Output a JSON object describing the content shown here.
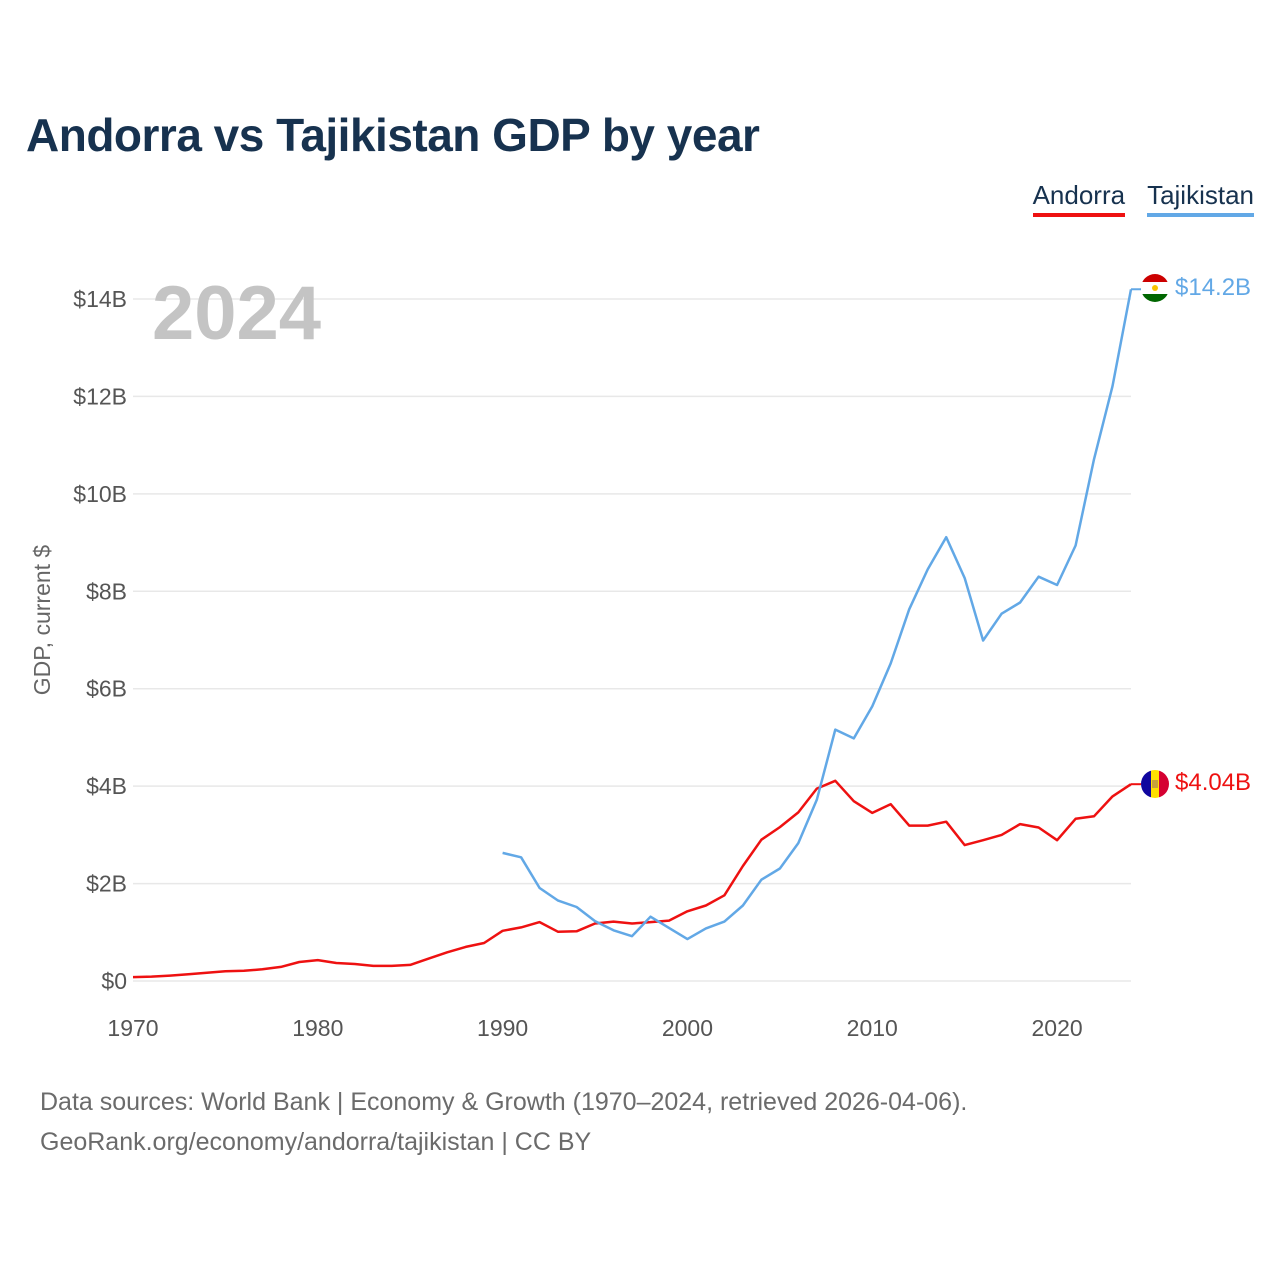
{
  "title": "Andorra vs Tajikistan GDP by year",
  "legend": {
    "andorra": "Andorra",
    "tajikistan": "Tajikistan"
  },
  "footer": {
    "line1": "Data sources: World Bank | Economy & Growth (1970–2024, retrieved 2026-04-06).",
    "line2": "GeoRank.org/economy/andorra/tajikistan | CC BY"
  },
  "colors": {
    "andorra": "#ee1111",
    "tajikistan": "#62a8e6",
    "title": "#17324f",
    "grid": "#e8e8e8"
  },
  "chart_data": {
    "type": "line",
    "title": "Andorra vs Tajikistan GDP by year",
    "xlabel": "",
    "ylabel": "GDP, current $",
    "xlim": [
      1970,
      2024
    ],
    "ylim": [
      0,
      14
    ],
    "unit": "billions USD",
    "current_year": "2024",
    "x_ticks": [
      1970,
      1980,
      1990,
      2000,
      2010,
      2020
    ],
    "x_tick_labels": [
      "1970",
      "1980",
      "1990",
      "2000",
      "2010",
      "2020"
    ],
    "y_ticks": [
      0,
      2,
      4,
      6,
      8,
      10,
      12,
      14
    ],
    "y_tick_labels": [
      "$0",
      "$2B",
      "$4B",
      "$6B",
      "$8B",
      "$10B",
      "$12B",
      "$14B"
    ],
    "grid": true,
    "legend_position": "top-right",
    "series": [
      {
        "name": "Andorra",
        "color": "#ee1111",
        "end_label": "$4.04B",
        "flag": "andorra-flag",
        "x": [
          1970,
          1971,
          1972,
          1973,
          1974,
          1975,
          1976,
          1977,
          1978,
          1979,
          1980,
          1981,
          1982,
          1983,
          1984,
          1985,
          1986,
          1987,
          1988,
          1989,
          1990,
          1991,
          1992,
          1993,
          1994,
          1995,
          1996,
          1997,
          1998,
          1999,
          2000,
          2001,
          2002,
          2003,
          2004,
          2005,
          2006,
          2007,
          2008,
          2009,
          2010,
          2011,
          2012,
          2013,
          2014,
          2015,
          2016,
          2017,
          2018,
          2019,
          2020,
          2021,
          2022,
          2023,
          2024
        ],
        "values": [
          0.08,
          0.09,
          0.11,
          0.14,
          0.17,
          0.2,
          0.21,
          0.24,
          0.29,
          0.39,
          0.43,
          0.37,
          0.35,
          0.31,
          0.31,
          0.33,
          0.46,
          0.59,
          0.7,
          0.78,
          1.03,
          1.1,
          1.21,
          1.01,
          1.02,
          1.18,
          1.22,
          1.18,
          1.21,
          1.24,
          1.43,
          1.55,
          1.76,
          2.36,
          2.9,
          3.16,
          3.46,
          3.95,
          4.11,
          3.69,
          3.45,
          3.63,
          3.19,
          3.19,
          3.27,
          2.79,
          2.89,
          3.0,
          3.22,
          3.15,
          2.89,
          3.33,
          3.38,
          3.79,
          4.04
        ]
      },
      {
        "name": "Tajikistan",
        "color": "#62a8e6",
        "end_label": "$14.2B",
        "flag": "tajikistan-flag",
        "x": [
          1990,
          1991,
          1992,
          1993,
          1994,
          1995,
          1996,
          1997,
          1998,
          1999,
          2000,
          2001,
          2002,
          2003,
          2004,
          2005,
          2006,
          2007,
          2008,
          2009,
          2010,
          2011,
          2012,
          2013,
          2014,
          2015,
          2016,
          2017,
          2018,
          2019,
          2020,
          2021,
          2022,
          2023,
          2024
        ],
        "values": [
          2.63,
          2.54,
          1.91,
          1.65,
          1.52,
          1.23,
          1.04,
          0.92,
          1.32,
          1.09,
          0.86,
          1.08,
          1.22,
          1.55,
          2.08,
          2.31,
          2.83,
          3.72,
          5.16,
          4.98,
          5.64,
          6.52,
          7.63,
          8.45,
          9.11,
          8.27,
          6.99,
          7.54,
          7.77,
          8.3,
          8.13,
          8.94,
          10.71,
          12.21,
          14.2
        ]
      }
    ]
  }
}
